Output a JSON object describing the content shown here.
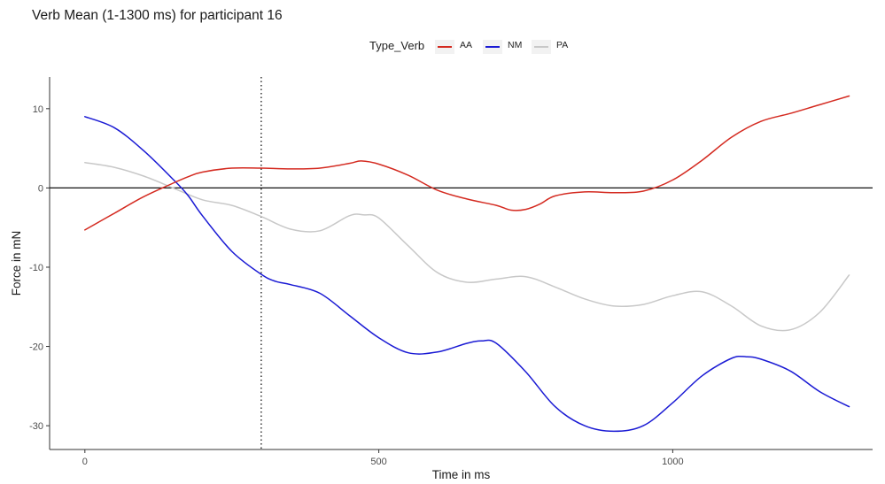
{
  "chart_data": {
    "type": "line",
    "title": "Verb Mean (1-1300 ms) for participant 16",
    "xlabel": "Time in ms",
    "ylabel": "Force in mN",
    "legend_title": "Type_Verb",
    "legend_position": "top",
    "xlim": [
      -60,
      1340
    ],
    "ylim": [
      -33,
      14
    ],
    "x_ticks": [
      0,
      500,
      1000
    ],
    "y_ticks": [
      10,
      0,
      -10,
      -20,
      -30
    ],
    "grid": false,
    "reference_lines": {
      "horizontal_y": 0,
      "vertical_dotted_x": 300
    },
    "series": [
      {
        "name": "AA",
        "color": "#d42a20",
        "points": [
          [
            0,
            -5.3
          ],
          [
            50,
            -3.2
          ],
          [
            100,
            -1.1
          ],
          [
            150,
            0.6
          ],
          [
            175,
            1.4
          ],
          [
            200,
            2.0
          ],
          [
            250,
            2.5
          ],
          [
            300,
            2.5
          ],
          [
            350,
            2.4
          ],
          [
            400,
            2.5
          ],
          [
            450,
            3.1
          ],
          [
            470,
            3.4
          ],
          [
            500,
            3.0
          ],
          [
            550,
            1.6
          ],
          [
            600,
            -0.3
          ],
          [
            650,
            -1.4
          ],
          [
            700,
            -2.2
          ],
          [
            725,
            -2.8
          ],
          [
            750,
            -2.7
          ],
          [
            775,
            -2.0
          ],
          [
            800,
            -1.0
          ],
          [
            850,
            -0.5
          ],
          [
            900,
            -0.6
          ],
          [
            950,
            -0.4
          ],
          [
            1000,
            1.0
          ],
          [
            1050,
            3.5
          ],
          [
            1100,
            6.4
          ],
          [
            1150,
            8.4
          ],
          [
            1200,
            9.4
          ],
          [
            1250,
            10.5
          ],
          [
            1300,
            11.6
          ]
        ]
      },
      {
        "name": "NM",
        "color": "#1a1ad4",
        "points": [
          [
            0,
            9.0
          ],
          [
            50,
            7.6
          ],
          [
            100,
            4.7
          ],
          [
            150,
            1.1
          ],
          [
            175,
            -0.9
          ],
          [
            200,
            -3.5
          ],
          [
            250,
            -8.0
          ],
          [
            300,
            -10.9
          ],
          [
            325,
            -11.8
          ],
          [
            350,
            -12.2
          ],
          [
            400,
            -13.3
          ],
          [
            450,
            -16.1
          ],
          [
            500,
            -18.9
          ],
          [
            550,
            -20.8
          ],
          [
            600,
            -20.7
          ],
          [
            650,
            -19.6
          ],
          [
            675,
            -19.3
          ],
          [
            700,
            -19.6
          ],
          [
            750,
            -23.2
          ],
          [
            800,
            -27.6
          ],
          [
            850,
            -30.0
          ],
          [
            900,
            -30.7
          ],
          [
            950,
            -30.0
          ],
          [
            1000,
            -27.1
          ],
          [
            1050,
            -23.7
          ],
          [
            1100,
            -21.5
          ],
          [
            1125,
            -21.3
          ],
          [
            1150,
            -21.6
          ],
          [
            1200,
            -23.1
          ],
          [
            1250,
            -25.7
          ],
          [
            1300,
            -27.6
          ]
        ]
      },
      {
        "name": "PA",
        "color": "#c8c8c8",
        "points": [
          [
            0,
            3.2
          ],
          [
            50,
            2.6
          ],
          [
            100,
            1.5
          ],
          [
            150,
            0.0
          ],
          [
            200,
            -1.5
          ],
          [
            250,
            -2.2
          ],
          [
            300,
            -3.6
          ],
          [
            350,
            -5.2
          ],
          [
            400,
            -5.4
          ],
          [
            450,
            -3.5
          ],
          [
            475,
            -3.4
          ],
          [
            500,
            -3.8
          ],
          [
            550,
            -7.3
          ],
          [
            600,
            -10.7
          ],
          [
            650,
            -11.9
          ],
          [
            700,
            -11.5
          ],
          [
            750,
            -11.2
          ],
          [
            800,
            -12.5
          ],
          [
            850,
            -14.0
          ],
          [
            900,
            -14.9
          ],
          [
            950,
            -14.7
          ],
          [
            1000,
            -13.6
          ],
          [
            1050,
            -13.1
          ],
          [
            1100,
            -14.9
          ],
          [
            1150,
            -17.4
          ],
          [
            1200,
            -17.9
          ],
          [
            1250,
            -15.7
          ],
          [
            1300,
            -11.0
          ]
        ]
      }
    ]
  }
}
